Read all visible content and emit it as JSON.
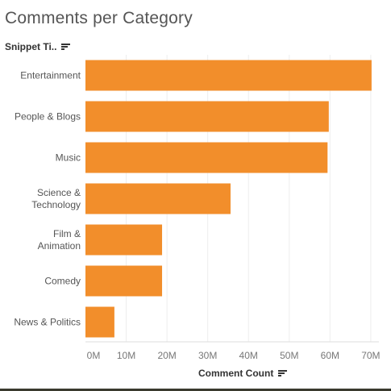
{
  "chart_data": {
    "type": "bar",
    "orientation": "horizontal",
    "title": "Comments per Category",
    "ylabel": "Snippet Ti..",
    "xlabel": "Comment Count",
    "categories": [
      [
        "Entertainment"
      ],
      [
        "People & Blogs"
      ],
      [
        "Music"
      ],
      [
        "Science &",
        "Technology"
      ],
      [
        "Film &",
        "Animation"
      ],
      [
        "Comedy"
      ],
      [
        "News & Politics"
      ]
    ],
    "values": [
      70200000,
      59700000,
      59400000,
      35600000,
      18800000,
      18800000,
      7100000
    ],
    "xlim": [
      0,
      72000000
    ],
    "xticks": [
      0,
      10000000,
      20000000,
      30000000,
      40000000,
      50000000,
      60000000,
      70000000
    ],
    "xtick_labels": [
      "0M",
      "10M",
      "20M",
      "30M",
      "40M",
      "50M",
      "60M",
      "70M"
    ],
    "grid": true,
    "bar_color": "#f28e2b"
  }
}
